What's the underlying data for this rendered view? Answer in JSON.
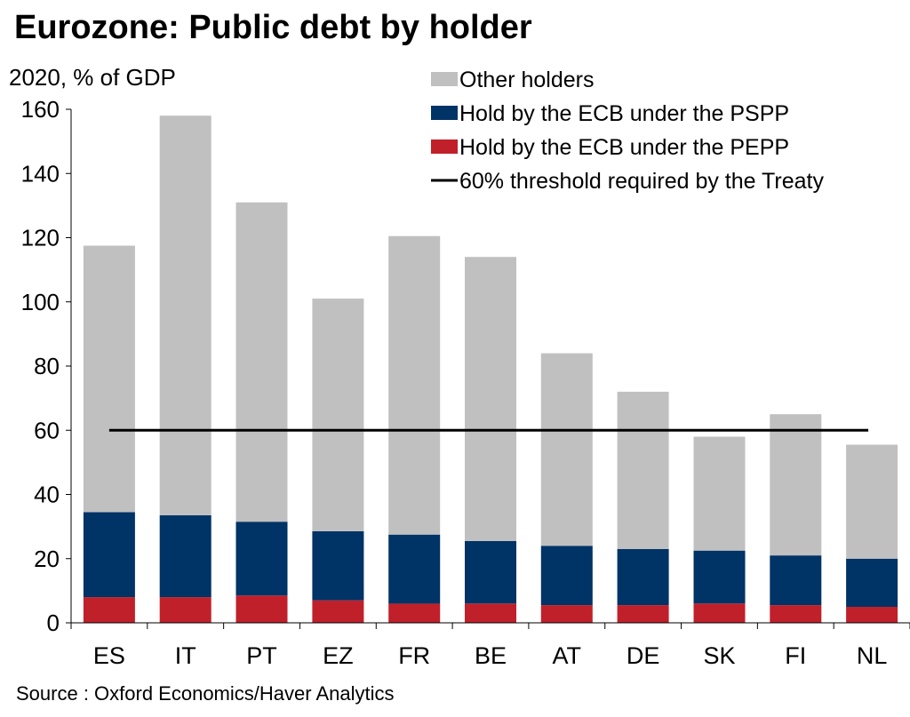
{
  "title": "Eurozone: Public debt by holder",
  "source": "Source : Oxford Economics/Haver Analytics",
  "colors": {
    "other": "#c0c0c0",
    "pspp": "#003366",
    "pepp": "#c0202a",
    "threshold": "#000000"
  },
  "chart_data": {
    "type": "bar",
    "stacked": true,
    "title": "Eurozone: Public debt by holder",
    "ylabel": "2020, % of GDP",
    "xlabel": "",
    "ylim": [
      0,
      160
    ],
    "yticks": [
      0,
      20,
      40,
      60,
      80,
      100,
      120,
      140,
      160
    ],
    "categories": [
      "ES",
      "IT",
      "PT",
      "EZ",
      "FR",
      "BE",
      "AT",
      "DE",
      "SK",
      "FI",
      "NL"
    ],
    "series": [
      {
        "name": "Hold by the ECB under the PEPP",
        "key": "pepp",
        "values": [
          8,
          8,
          8.5,
          7,
          6,
          6,
          5.5,
          5.5,
          6,
          5.5,
          5
        ]
      },
      {
        "name": "Hold by the ECB under the PSPP",
        "key": "pspp",
        "values": [
          26.5,
          25.5,
          23,
          21.5,
          21.5,
          19.5,
          18.5,
          17.5,
          16.5,
          15.5,
          15
        ]
      },
      {
        "name": "Other holders",
        "key": "other",
        "values": [
          83,
          124.5,
          99.5,
          72.5,
          93,
          88.5,
          60,
          49,
          35.5,
          44,
          35.5
        ]
      }
    ],
    "totals": [
      117.5,
      158,
      131,
      101,
      120.5,
      114,
      84,
      72,
      58,
      65,
      55.5
    ],
    "threshold": {
      "name": "60% threshold required by the Treaty",
      "value": 60
    },
    "legend": {
      "position": "top-right",
      "items": [
        {
          "label": "Other holders",
          "key": "other",
          "kind": "box"
        },
        {
          "label": "Hold by the ECB under the PSPP",
          "key": "pspp",
          "kind": "box"
        },
        {
          "label": "Hold by the ECB under the PEPP",
          "key": "pepp",
          "kind": "box"
        },
        {
          "label": "60% threshold required by the Treaty",
          "key": "threshold",
          "kind": "line"
        }
      ]
    }
  }
}
